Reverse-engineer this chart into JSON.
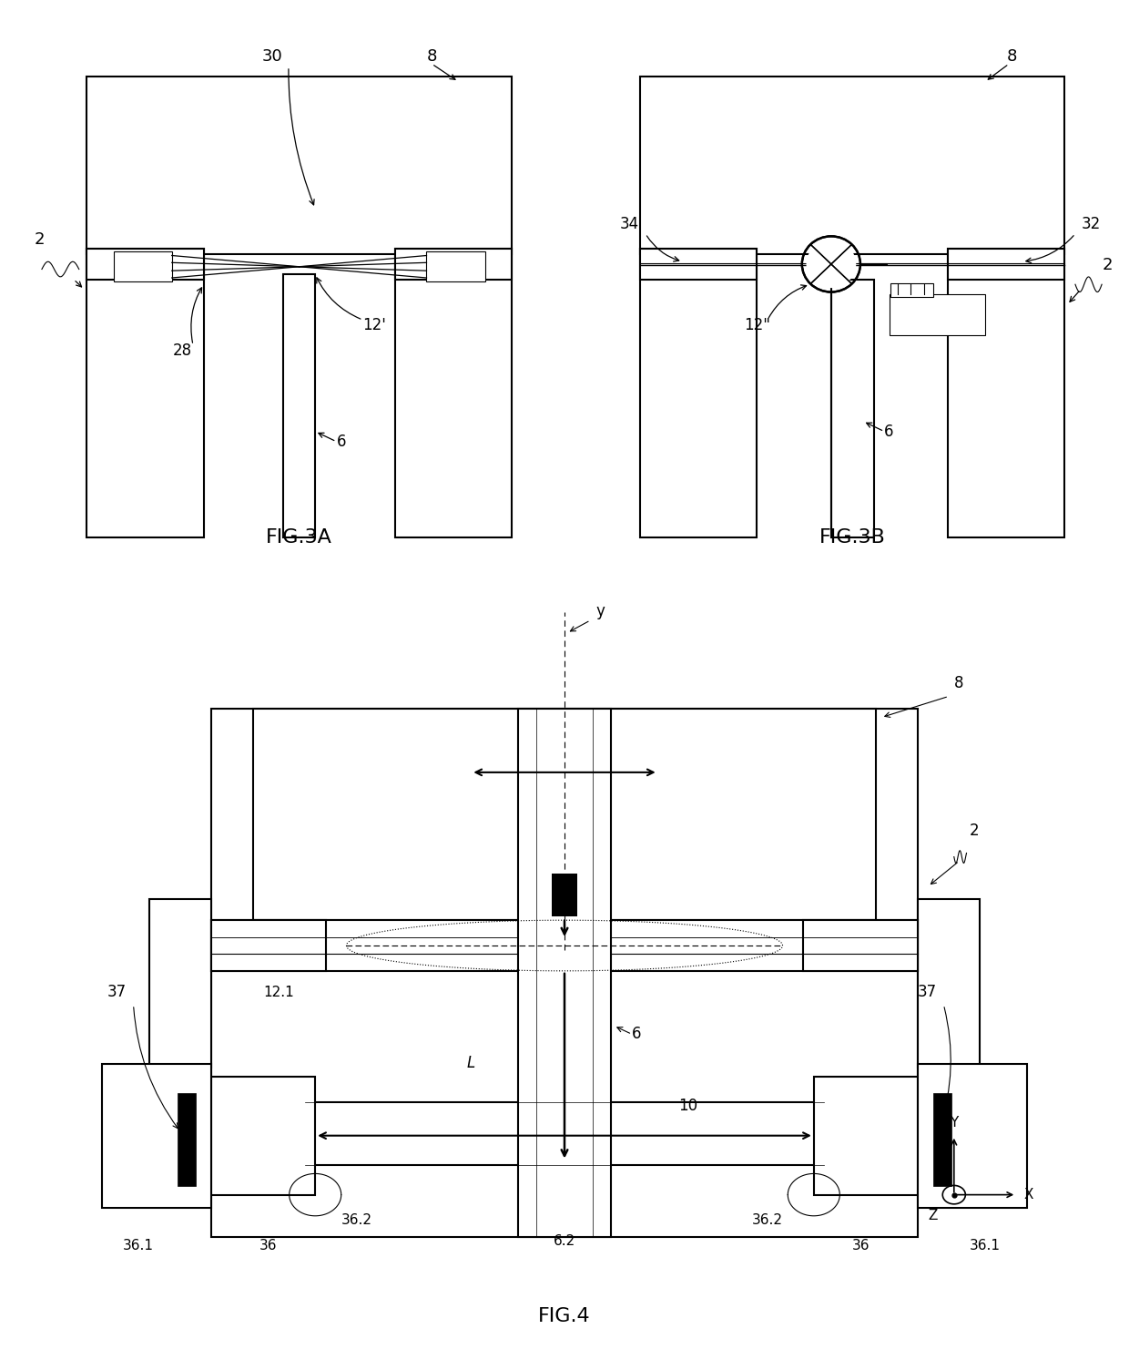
{
  "bg_color": "#ffffff",
  "lc": "#000000",
  "lw": 1.5,
  "lw_thin": 0.8,
  "fig3a_label": "FIG.3A",
  "fig3b_label": "FIG.3B",
  "fig4_label": "FIG.4"
}
